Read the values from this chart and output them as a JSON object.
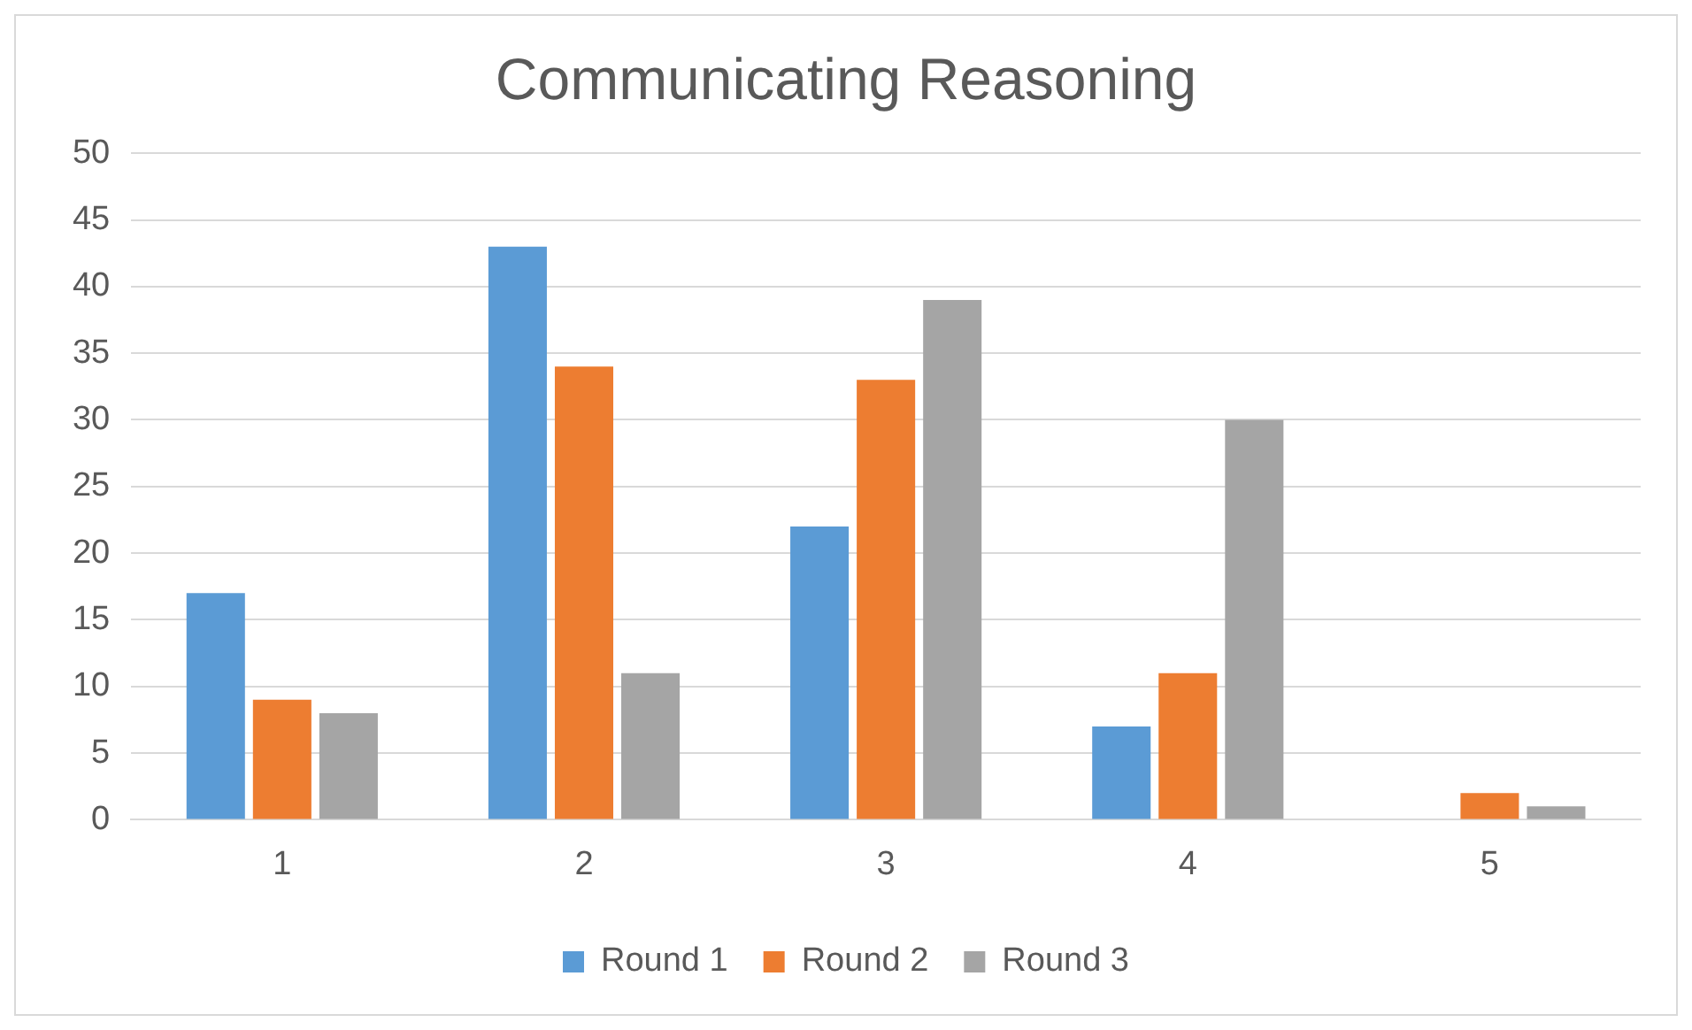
{
  "chart_data": {
    "type": "bar",
    "title": "Communicating Reasoning",
    "categories": [
      "1",
      "2",
      "3",
      "4",
      "5"
    ],
    "series": [
      {
        "name": "Round 1",
        "color": "#5b9bd5",
        "values": [
          17,
          43,
          22,
          7,
          0
        ]
      },
      {
        "name": "Round 2",
        "color": "#ed7d31",
        "values": [
          9,
          34,
          33,
          11,
          2
        ]
      },
      {
        "name": "Round 3",
        "color": "#a5a5a5",
        "values": [
          8,
          11,
          39,
          30,
          1
        ]
      }
    ],
    "ylim": [
      0,
      50
    ],
    "yticks": [
      0,
      5,
      10,
      15,
      20,
      25,
      30,
      35,
      40,
      45,
      50
    ],
    "grid": "y",
    "legend": "bottom"
  }
}
